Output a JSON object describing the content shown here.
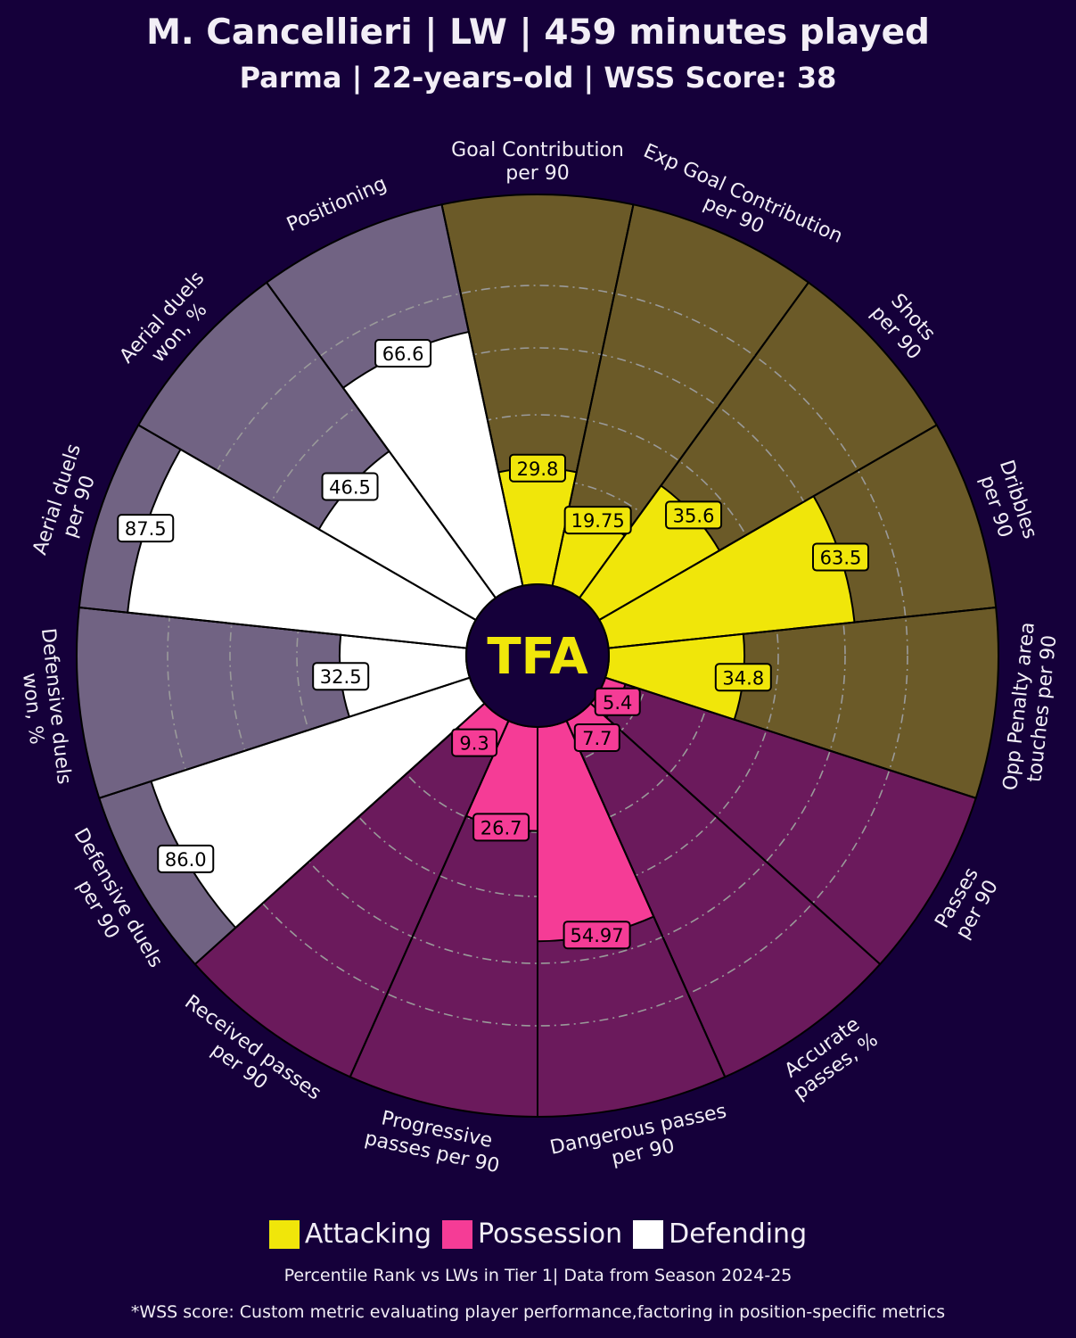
{
  "header": {
    "title": "M. Cancellieri | LW | 459 minutes played",
    "subtitle": "Parma | 22-years-old | WSS Score: 38"
  },
  "logo_text": "TFA",
  "colors": {
    "background": "#15003a",
    "attacking_fill": "#f0e60a",
    "attacking_bg": "#6b5a28",
    "possession_fill": "#f53c96",
    "possession_bg": "#6b1a5c",
    "defending_fill": "#ffffff",
    "defending_bg": "#716383"
  },
  "legend": [
    {
      "label": "Attacking",
      "color": "#f0e60a"
    },
    {
      "label": "Possession",
      "color": "#f53c96"
    },
    {
      "label": "Defending",
      "color": "#ffffff"
    }
  ],
  "footer": {
    "note": "Percentile Rank vs LWs in Tier 1| Data from Season 2024-25",
    "wss_note": "*WSS score: Custom metric evaluating player performance,factoring in position-specific metrics"
  },
  "chart_data": {
    "type": "pizza",
    "range": [
      0,
      100
    ],
    "categories": [
      {
        "label": [
          "Goal Contribution",
          "per 90"
        ],
        "value": 29.8,
        "display": "29.8",
        "group": "attacking"
      },
      {
        "label": [
          "Exp Goal Contribution",
          "per 90"
        ],
        "value": 19.75,
        "display": "19.75",
        "group": "attacking"
      },
      {
        "label": [
          "Shots",
          "per 90"
        ],
        "value": 35.6,
        "display": "35.6",
        "group": "attacking"
      },
      {
        "label": [
          "Dribbles",
          "per 90"
        ],
        "value": 63.5,
        "display": "63.5",
        "group": "attacking"
      },
      {
        "label": [
          "Opp Penalty area",
          "touches per 90"
        ],
        "value": 34.8,
        "display": "34.8",
        "group": "attacking"
      },
      {
        "label": [
          "Passes",
          "per 90"
        ],
        "value": 5.4,
        "display": "5.4",
        "group": "possession"
      },
      {
        "label": [
          "Accurate",
          "passes, %"
        ],
        "value": 7.7,
        "display": "7.7",
        "group": "possession"
      },
      {
        "label": [
          "Dangerous passes",
          "per 90"
        ],
        "value": 54.97,
        "display": "54.97",
        "group": "possession"
      },
      {
        "label": [
          "Progressive",
          "passes per 90"
        ],
        "value": 26.7,
        "display": "26.7",
        "group": "possession"
      },
      {
        "label": [
          "Received passes",
          "per 90"
        ],
        "value": 9.3,
        "display": "9.3",
        "group": "possession"
      },
      {
        "label": [
          "Defensive duels",
          "per 90"
        ],
        "value": 86.0,
        "display": "86.0",
        "group": "defending"
      },
      {
        "label": [
          "Defensive duels",
          "won, %"
        ],
        "value": 32.5,
        "display": "32.5",
        "group": "defending"
      },
      {
        "label": [
          "Aerial duels",
          "per 90"
        ],
        "value": 87.5,
        "display": "87.5",
        "group": "defending"
      },
      {
        "label": [
          "Aerial duels",
          "won, %"
        ],
        "value": 46.5,
        "display": "46.5",
        "group": "defending"
      },
      {
        "label": [
          "Positioning"
        ],
        "value": 66.6,
        "display": "66.6",
        "group": "defending"
      }
    ]
  }
}
